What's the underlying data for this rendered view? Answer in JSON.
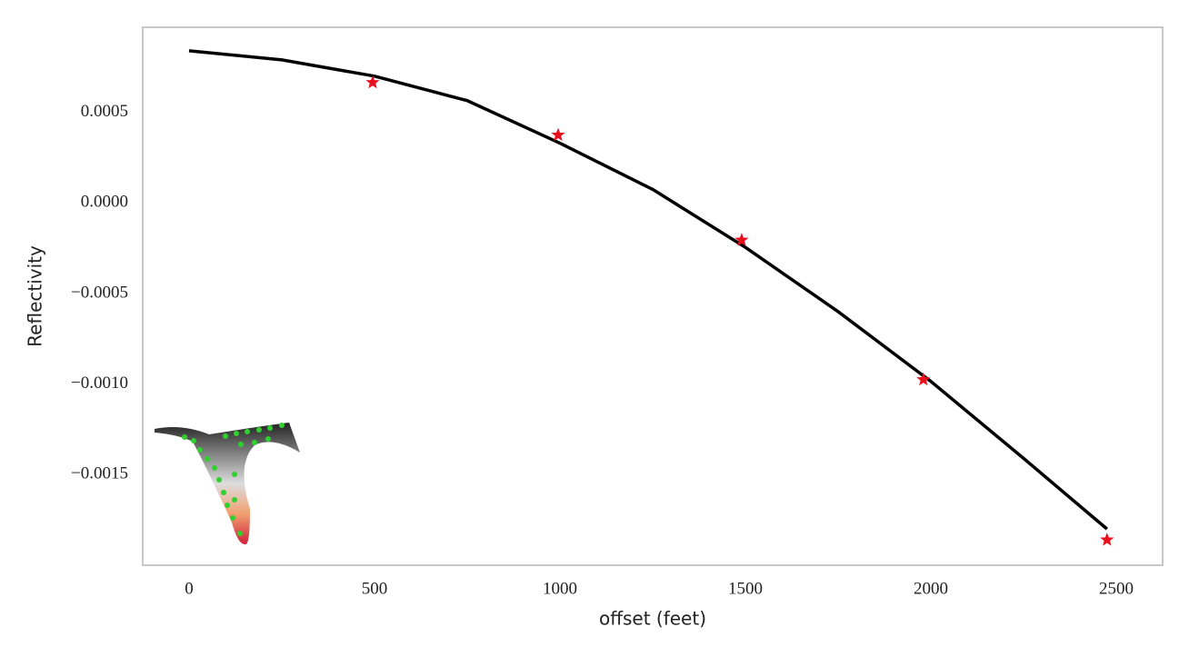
{
  "chart_data": {
    "type": "line",
    "xlabel": "offset (feet)",
    "ylabel": "Reflectivity",
    "xlim": [
      -125,
      2625
    ],
    "ylim": [
      -0.002,
      0.00097
    ],
    "xticks": [
      0,
      500,
      1000,
      1500,
      2000,
      2500
    ],
    "yticks": [
      {
        "value": 0.0005,
        "label": "0.0005"
      },
      {
        "value": 0,
        "label": "0.0000"
      },
      {
        "value": -0.0005,
        "label": "−0.0005"
      },
      {
        "value": -0.001,
        "label": "−0.0010"
      },
      {
        "value": -0.0015,
        "label": "−0.0015"
      }
    ],
    "grid": false,
    "series": [
      {
        "type": "line",
        "color": "#000000",
        "x": [
          0,
          250,
          500,
          750,
          1000,
          1250,
          1500,
          1750,
          2000,
          2250,
          2475
        ],
        "values": [
          0.00084,
          0.00079,
          0.0007,
          0.000565,
          0.00033,
          7.5e-05,
          -0.000245,
          -0.0006,
          -0.000985,
          -0.00141,
          -0.0018
        ]
      },
      {
        "type": "scatter",
        "marker": "star",
        "color": "#e8101c",
        "x": [
          495,
          995,
          1490,
          1980,
          2475
        ],
        "values": [
          0.000665,
          0.000375,
          -0.000205,
          -0.000975,
          -0.00186
        ]
      }
    ]
  }
}
